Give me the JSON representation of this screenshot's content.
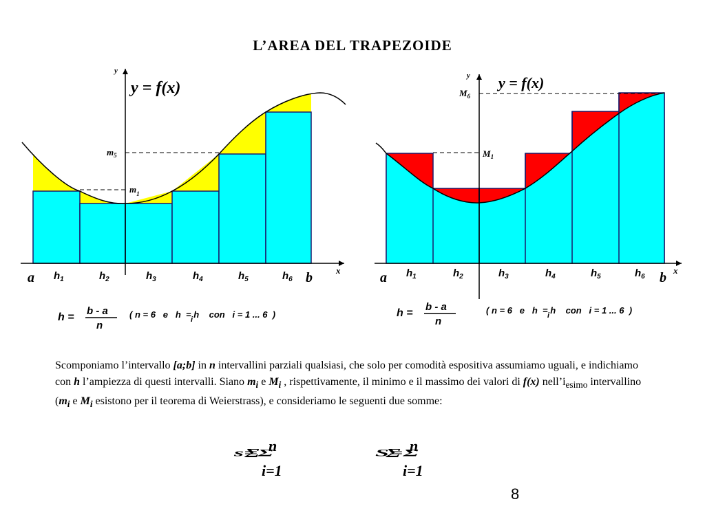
{
  "title": "L’AREA  DEL  TRAPEZOIDE",
  "left_figure": {
    "func_label": "y = f(x)",
    "y_axis": "y",
    "x_axis": "x",
    "a": "a",
    "b": "b",
    "m5_main": "m",
    "m5_sub": "5",
    "m1_main": "m",
    "m1_sub": "1",
    "h_labels": [
      "h1",
      "h2",
      "h3",
      "h4",
      "h5",
      "h6"
    ],
    "formula_lhs": "h =",
    "formula_num": "b - a",
    "formula_den": "n",
    "formula_cond": "( n = 6   e   h  = h    con   i = 1 ... 6  )",
    "formula_sub_i": "i"
  },
  "right_figure": {
    "func_label": "y = f(x)",
    "y_axis": "y",
    "x_axis": "x",
    "a": "a",
    "b": "b",
    "M6_main": "M",
    "M6_sub": "6",
    "M1_main": "M",
    "M1_sub": "1",
    "h_labels": [
      "h1",
      "h2",
      "h3",
      "h4",
      "h5",
      "h6"
    ],
    "formula_lhs": "h =",
    "formula_num": "b - a",
    "formula_den": "n",
    "formula_cond": "( n = 6   e   h  = h    con   i = 1 ... 6  )",
    "formula_sub_i": "i"
  },
  "paragraph": {
    "p1": "Scomponiamo l’intervallo ",
    "ab": "[a;b]",
    "p2": " in ",
    "n": "n",
    "p3": " intervallini parziali qualsiasi, che solo per comodità espositiva assumiamo uguali, e indichiamo con ",
    "h": "h",
    "p4": " l’ampiezza di questi intervalli. Siano  ",
    "mi": "m",
    "mi_sub": "i",
    "p5": " e ",
    "Mi": "M",
    "Mi_sub": "i",
    "p6": " , rispettivamente, il minimo e il massimo dei valori di  ",
    "fx": "f(x)",
    "p7": "  nell’i",
    "esimo": "esimo",
    "p8": " intervallino (",
    "mi2": "m",
    "mi2_sub": "i",
    "p9": " e ",
    "Mi2": "M",
    "Mi2_sub": "i",
    "p10": " esistono per il teorema di Weierstrass), e consideriamo le seguenti due somme:"
  },
  "page_number": "8",
  "colors": {
    "cyan": "#00ffff",
    "yellow": "#ffff00",
    "red": "#ff0000"
  }
}
